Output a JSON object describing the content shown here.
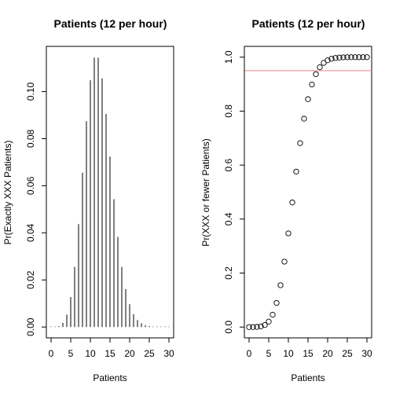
{
  "chart_data": [
    {
      "type": "bar",
      "title": "Patients (12 per hour)",
      "xlabel": "Patients",
      "ylabel": "Pr(Exactly XXX Patients)",
      "xlim": [
        -1.2,
        31.2
      ],
      "ylim": [
        -0.0046,
        0.1192
      ],
      "xticks": [
        0,
        5,
        10,
        15,
        20,
        25,
        30
      ],
      "yticks": [
        0.0,
        0.02,
        0.04,
        0.06,
        0.08,
        0.1
      ],
      "ytick_labels": [
        "0.00",
        "0.02",
        "0.04",
        "0.06",
        "0.08",
        "0.10"
      ],
      "x": [
        0,
        1,
        2,
        3,
        4,
        5,
        6,
        7,
        8,
        9,
        10,
        11,
        12,
        13,
        14,
        15,
        16,
        17,
        18,
        19,
        20,
        21,
        22,
        23,
        24,
        25,
        26,
        27,
        28,
        29,
        30
      ],
      "values": [
        0.0,
        0.0001,
        0.0004,
        0.0018,
        0.0053,
        0.0127,
        0.0255,
        0.0437,
        0.0655,
        0.0874,
        0.1048,
        0.1144,
        0.1144,
        0.1056,
        0.0905,
        0.0724,
        0.0543,
        0.0383,
        0.0255,
        0.0161,
        0.0097,
        0.0055,
        0.003,
        0.0016,
        0.0008,
        0.0004,
        0.0002,
        0.0001,
        0.0,
        0.0,
        0.0
      ],
      "grid": false,
      "line_color": "#000000"
    },
    {
      "type": "scatter",
      "title": "Patients (12 per hour)",
      "xlabel": "Patients",
      "ylabel": "Pr(XXX or fewer Patients)",
      "xlim": [
        -1.2,
        31.2
      ],
      "ylim": [
        -0.04,
        1.04
      ],
      "xticks": [
        0,
        5,
        10,
        15,
        20,
        25,
        30
      ],
      "yticks": [
        0.0,
        0.2,
        0.4,
        0.6,
        0.8,
        1.0
      ],
      "ytick_labels": [
        "0.0",
        "0.2",
        "0.4",
        "0.6",
        "0.8",
        "1.0"
      ],
      "x": [
        0,
        1,
        2,
        3,
        4,
        5,
        6,
        7,
        8,
        9,
        10,
        11,
        12,
        13,
        14,
        15,
        16,
        17,
        18,
        19,
        20,
        21,
        22,
        23,
        24,
        25,
        26,
        27,
        28,
        29,
        30
      ],
      "y": [
        0.0,
        0.0001,
        0.0005,
        0.0023,
        0.0076,
        0.0203,
        0.0458,
        0.0895,
        0.155,
        0.2424,
        0.3472,
        0.4616,
        0.576,
        0.6815,
        0.772,
        0.8444,
        0.8987,
        0.937,
        0.9626,
        0.9787,
        0.9884,
        0.9939,
        0.997,
        0.9985,
        0.9993,
        0.9997,
        0.9999,
        0.9999,
        1.0,
        1.0,
        1.0
      ],
      "reference_line": 0.95,
      "reference_color": "#f08080",
      "marker": "open-circle",
      "grid": false
    }
  ]
}
